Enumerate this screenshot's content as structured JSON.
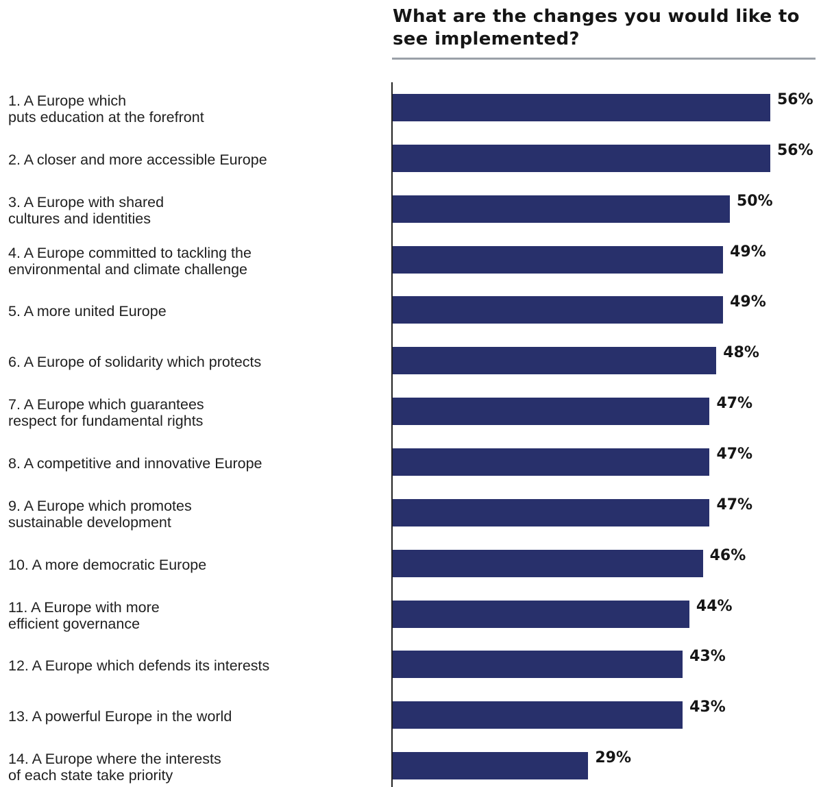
{
  "chart_data": {
    "type": "bar",
    "orientation": "horizontal",
    "title": "What are the changes you would like to see implemented?",
    "categories": [
      "1. A Europe which\nputs education at the forefront",
      "2. A closer and more accessible Europe",
      "3. A Europe with shared\ncultures and identities",
      "4. A Europe committed to tackling the\nenvironmental and climate challenge",
      "5. A more united Europe",
      "6. A Europe of solidarity which protects",
      "7. A Europe which guarantees\nrespect for fundamental rights",
      "8. A competitive and innovative Europe",
      "9. A Europe which promotes\nsustainable development",
      "10. A more democratic Europe",
      "11. A Europe with more\nefficient governance",
      "12. A Europe which defends its interests",
      "13. A powerful Europe in the world",
      "14. A Europe where the interests\nof each state take priority"
    ],
    "values": [
      56,
      56,
      50,
      49,
      49,
      48,
      47,
      47,
      47,
      46,
      44,
      43,
      43,
      29
    ],
    "value_labels": [
      "56%",
      "56%",
      "50%",
      "49%",
      "49%",
      "48%",
      "47%",
      "47%",
      "47%",
      "46%",
      "44%",
      "43%",
      "43%",
      "29%"
    ],
    "unit": "%",
    "grid": false,
    "legend": "none",
    "colors": {
      "bar": "#28306b",
      "title_rule": "#9aa0a8",
      "axis": "#222222"
    }
  }
}
